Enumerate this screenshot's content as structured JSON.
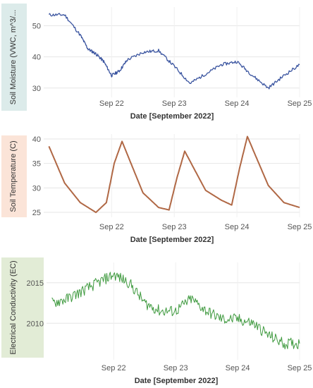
{
  "chart_data": [
    {
      "type": "line",
      "ylabel": "Soil Moisture (VWC, m^3/...",
      "xlabel": "Date [September 2022]",
      "x_ticks": [
        "Sep 22",
        "Sep 23",
        "Sep 24",
        "Sep 25"
      ],
      "y_ticks": [
        30,
        40,
        50
      ],
      "xlim": [
        "2022-09-21 10:00",
        "2022-09-25 12:00"
      ],
      "ylim": [
        27,
        56
      ],
      "grid": true,
      "colors": {
        "line": "#3b55a0",
        "label_bg": "#dcebea"
      },
      "series": [
        {
          "x": [
            "2022-09-21 12:00",
            "2022-09-21 18:00",
            "2022-09-22 00:00",
            "2022-09-22 03:00",
            "2022-09-22 06:00",
            "2022-09-22 09:00",
            "2022-09-22 12:00",
            "2022-09-22 15:00",
            "2022-09-22 18:00",
            "2022-09-23 00:00",
            "2022-09-23 06:00",
            "2022-09-23 12:00",
            "2022-09-23 18:00",
            "2022-09-24 00:00",
            "2022-09-24 06:00",
            "2022-09-24 12:00",
            "2022-09-24 18:00",
            "2022-09-25 00:00",
            "2022-09-25 06:00",
            "2022-09-25 12:00"
          ],
          "values": [
            53.5,
            53.5,
            47,
            42.5,
            41,
            38.5,
            34,
            35.5,
            39,
            41.5,
            42,
            37,
            31.5,
            34.5,
            37.5,
            38.5,
            34,
            30,
            34,
            37.5
          ]
        }
      ]
    },
    {
      "type": "line",
      "ylabel": "Soil Temperature (C)",
      "xlabel": "Date [September 2022]",
      "x_ticks": [
        "Sep 22",
        "Sep 23",
        "Sep 24",
        "Sep 25"
      ],
      "y_ticks": [
        25,
        30,
        35,
        40
      ],
      "xlim": [
        "2022-09-21 10:00",
        "2022-09-25 12:00"
      ],
      "ylim": [
        24,
        41
      ],
      "grid": true,
      "colors": {
        "line": "#b06845",
        "label_bg": "#fbe4d8"
      },
      "series": [
        {
          "x": [
            "2022-09-21 12:00",
            "2022-09-21 18:00",
            "2022-09-22 00:00",
            "2022-09-22 06:00",
            "2022-09-22 10:00",
            "2022-09-22 13:00",
            "2022-09-22 16:00",
            "2022-09-23 00:00",
            "2022-09-23 06:00",
            "2022-09-23 10:00",
            "2022-09-23 13:00",
            "2022-09-23 16:00",
            "2022-09-24 00:00",
            "2022-09-24 06:00",
            "2022-09-24 10:00",
            "2022-09-24 13:00",
            "2022-09-24 16:00",
            "2022-09-25 00:00",
            "2022-09-25 06:00",
            "2022-09-25 12:00"
          ],
          "values": [
            38.5,
            31,
            27,
            25,
            27,
            35,
            39.5,
            29,
            26,
            25.5,
            32,
            37.5,
            29.5,
            27.5,
            26.5,
            34,
            40.5,
            30.5,
            27,
            26
          ]
        }
      ]
    },
    {
      "type": "line",
      "ylabel": "Electrical Conductivity (EC)",
      "xlabel": "Date [September 2022]",
      "x_ticks": [
        "Sep 22",
        "Sep 23",
        "Sep 24",
        "Sep 25"
      ],
      "y_ticks": [
        2010,
        2015
      ],
      "xlim": [
        "2022-09-21 10:00",
        "2022-09-25 12:00"
      ],
      "ylim": [
        2005.5,
        2017.5
      ],
      "grid": true,
      "colors": {
        "line": "#3f9a3f",
        "label_bg": "#e2ecd6"
      },
      "series": [
        {
          "x": [
            "2022-09-21 12:00",
            "2022-09-21 18:00",
            "2022-09-22 00:00",
            "2022-09-22 06:00",
            "2022-09-22 12:00",
            "2022-09-22 18:00",
            "2022-09-23 00:00",
            "2022-09-23 06:00",
            "2022-09-23 12:00",
            "2022-09-23 18:00",
            "2022-09-24 00:00",
            "2022-09-24 06:00",
            "2022-09-24 12:00",
            "2022-09-24 18:00",
            "2022-09-25 00:00",
            "2022-09-25 06:00",
            "2022-09-25 12:00"
          ],
          "values": [
            2012.5,
            2013,
            2014,
            2015,
            2016,
            2015,
            2012.5,
            2011.5,
            2011.5,
            2013,
            2011.5,
            2010.5,
            2010.5,
            2010,
            2008.5,
            2007.5,
            2007.5
          ]
        }
      ]
    }
  ]
}
